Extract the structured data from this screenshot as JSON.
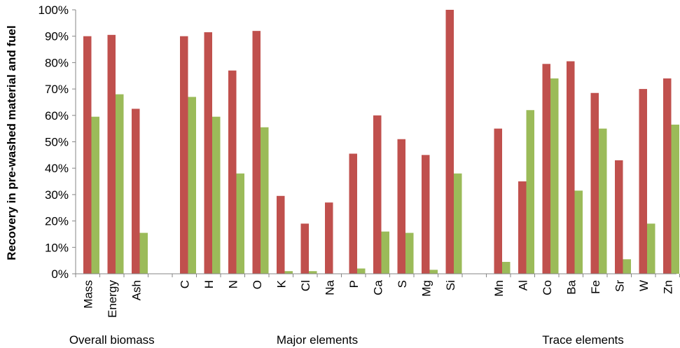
{
  "chart_data": {
    "type": "bar",
    "ylabel": "Recovery in pre-washed material and fuel",
    "xlabel": "",
    "ylim": [
      0,
      100
    ],
    "yticks": [
      "0%",
      "10%",
      "20%",
      "30%",
      "40%",
      "50%",
      "60%",
      "70%",
      "80%",
      "90%",
      "100%"
    ],
    "grid": false,
    "legend": "none",
    "categories": [
      "Mass",
      "Energy",
      "Ash",
      "C",
      "H",
      "N",
      "O",
      "K",
      "Cl",
      "Na",
      "P",
      "Ca",
      "S",
      "Mg",
      "Si",
      "Mn",
      "Al",
      "Co",
      "Ba",
      "Fe",
      "Sr",
      "W",
      "Zn"
    ],
    "groups": [
      {
        "label": "Overall biomass",
        "categories": [
          "Mass",
          "Energy",
          "Ash"
        ]
      },
      {
        "label": "Major elements",
        "categories": [
          "C",
          "H",
          "N",
          "O",
          "K",
          "Cl",
          "Na",
          "P",
          "Ca",
          "S",
          "Mg",
          "Si"
        ]
      },
      {
        "label": "Trace elements",
        "categories": [
          "Mn",
          "Al",
          "Co",
          "Ba",
          "Fe",
          "Sr",
          "W",
          "Zn"
        ]
      }
    ],
    "series": [
      {
        "color": "#c0504d",
        "values": [
          90,
          90.5,
          62.5,
          90,
          91.5,
          77,
          92,
          29.5,
          19,
          27,
          45.5,
          60,
          51,
          45,
          100,
          55,
          35,
          79.5,
          80.5,
          68.5,
          43,
          70,
          74
        ]
      },
      {
        "color": "#9bbb59",
        "values": [
          59.5,
          68,
          15.5,
          67,
          59.5,
          38,
          55.5,
          1,
          1,
          0,
          2,
          16,
          15.5,
          1.5,
          38,
          4.5,
          62,
          74,
          31.5,
          55,
          5.5,
          19,
          56.5
        ]
      }
    ]
  }
}
